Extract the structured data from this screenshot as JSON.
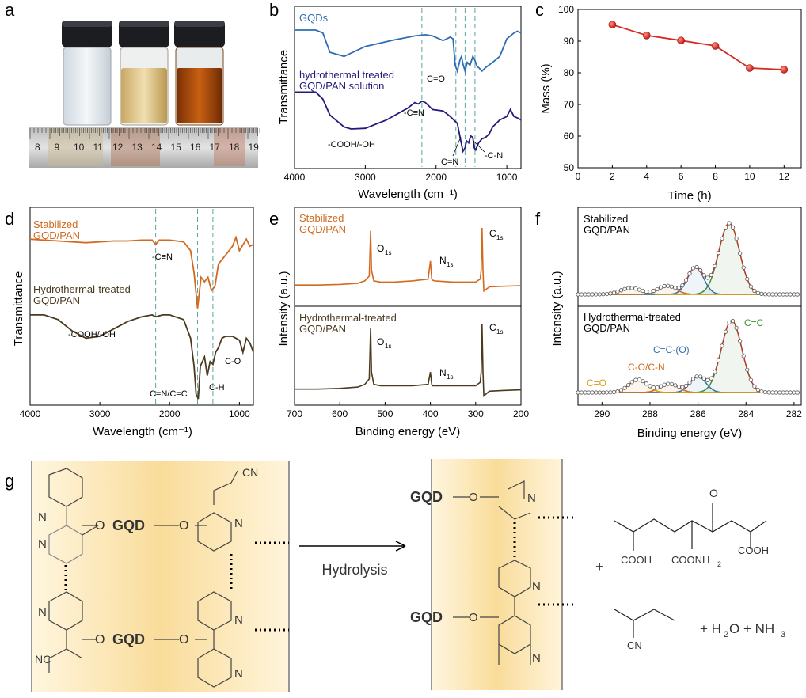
{
  "panels": {
    "a": "a",
    "b": "b",
    "c": "c",
    "d": "d",
    "e": "e",
    "f": "f",
    "g": "g"
  },
  "colors": {
    "gqd_blue": "#2e6db4",
    "navy": "#231a7a",
    "orange": "#d2691e",
    "brown": "#4a3a1e",
    "red": "#d42a23",
    "green": "#3f8f35",
    "steelblue": "#2f6ea6",
    "gold": "#d69a12",
    "olive": "#7a6a1a",
    "dashed": "#5aa5a0"
  },
  "ruler_numbers": [
    "8",
    "9",
    "10",
    "11",
    "12",
    "13",
    "14",
    "15",
    "16",
    "17",
    "18",
    "19"
  ],
  "chart_data": [
    {
      "panel": "b",
      "type": "line",
      "xlabel": "Wavelength (cm⁻¹)",
      "ylabel": "Transmittance",
      "xlim": [
        4000,
        800
      ],
      "x_ticks": [
        4000,
        3000,
        2000,
        1000
      ],
      "series": [
        {
          "name": "GQDs",
          "color": "#2e6db4",
          "x": [
            4000,
            3700,
            3600,
            3500,
            3300,
            3000,
            2600,
            2300,
            2150,
            2050,
            1900,
            1800,
            1760,
            1730,
            1700,
            1660,
            1640,
            1620,
            1590,
            1560,
            1520,
            1480,
            1450,
            1420,
            1390,
            1350,
            1300,
            1200,
            1100,
            1000,
            900,
            850,
            800
          ],
          "y": [
            1.0,
            1.0,
            0.95,
            0.62,
            0.55,
            0.72,
            0.83,
            0.9,
            0.92,
            0.9,
            0.82,
            0.88,
            0.85,
            0.4,
            0.3,
            0.5,
            0.55,
            0.42,
            0.3,
            0.45,
            0.4,
            0.55,
            0.48,
            0.38,
            0.35,
            0.3,
            0.36,
            0.45,
            0.55,
            0.85,
            0.95,
            0.98,
            0.95
          ]
        },
        {
          "name": "hydrothermal treated GQD/PAN solution",
          "color": "#231a7a",
          "x": [
            4000,
            3700,
            3600,
            3500,
            3300,
            3200,
            3000,
            2700,
            2400,
            2300,
            2250,
            2200,
            2150,
            2050,
            1900,
            1800,
            1700,
            1660,
            1620,
            1590,
            1570,
            1540,
            1510,
            1480,
            1460,
            1440,
            1400,
            1350,
            1300,
            1250,
            1200,
            1100,
            1000,
            950,
            900,
            850,
            800
          ],
          "y": [
            0.95,
            0.95,
            0.85,
            0.62,
            0.45,
            0.42,
            0.43,
            0.55,
            0.72,
            0.8,
            0.78,
            0.82,
            0.8,
            0.7,
            0.68,
            0.6,
            0.5,
            0.3,
            0.1,
            0.15,
            0.25,
            0.22,
            0.32,
            0.3,
            0.15,
            0.12,
            0.22,
            0.28,
            0.3,
            0.35,
            0.45,
            0.55,
            0.6,
            0.7,
            0.6,
            0.58,
            0.55
          ]
        }
      ],
      "labels": {
        "series1": "GQDs",
        "series2_line1": "hydrothermal treated",
        "series2_line2": "GQD/PAN solution",
        "cn_triple": "-C≡N",
        "cooh": "-COOH/-OH",
        "co": "C=O",
        "cn_double": "C=N",
        "c_n": "-C-N"
      },
      "dashed_lines_at": [
        2200,
        1720,
        1590,
        1450
      ]
    },
    {
      "panel": "c",
      "type": "line",
      "xlabel": "Time (h)",
      "ylabel": "Mass (%)",
      "xlim": [
        0,
        13
      ],
      "ylim": [
        50,
        100
      ],
      "x_ticks": [
        0,
        2,
        4,
        6,
        8,
        10,
        12
      ],
      "y_ticks": [
        50,
        60,
        70,
        80,
        90,
        100
      ],
      "x": [
        2,
        4,
        6,
        8,
        10,
        12
      ],
      "values": [
        95.2,
        91.8,
        90.2,
        88.5,
        81.5,
        81.0
      ]
    },
    {
      "panel": "d",
      "type": "line",
      "xlabel": "Wavelength (cm⁻¹)",
      "ylabel": "Transmittance",
      "xlim": [
        4000,
        800
      ],
      "x_ticks": [
        4000,
        3000,
        2000,
        1000
      ],
      "series": [
        {
          "name": "Stabilized GQD/PAN",
          "color": "#d2691e",
          "x": [
            4000,
            3800,
            3600,
            3400,
            3200,
            3000,
            2800,
            2600,
            2400,
            2250,
            2200,
            2150,
            2000,
            1800,
            1700,
            1650,
            1600,
            1550,
            1500,
            1450,
            1400,
            1350,
            1300,
            1200,
            1100,
            1050,
            1000,
            900,
            850,
            800
          ],
          "y": [
            0.98,
            0.97,
            0.96,
            0.95,
            0.94,
            0.95,
            0.96,
            0.96,
            0.97,
            0.97,
            0.92,
            0.97,
            0.97,
            0.95,
            0.85,
            0.6,
            0.2,
            0.55,
            0.5,
            0.55,
            0.4,
            0.45,
            0.7,
            0.8,
            0.9,
            1.0,
            0.85,
            0.98,
            0.9,
            0.92
          ]
        },
        {
          "name": "Hydrothermal-treated GQD/PAN",
          "color": "#4a3a1e",
          "x": [
            4000,
            3800,
            3600,
            3400,
            3200,
            3000,
            2800,
            2600,
            2400,
            2250,
            2200,
            2100,
            2000,
            1800,
            1700,
            1650,
            1620,
            1590,
            1560,
            1500,
            1460,
            1420,
            1380,
            1340,
            1300,
            1250,
            1200,
            1100,
            1050,
            1000,
            950,
            900,
            850,
            800
          ],
          "y": [
            0.95,
            0.95,
            0.9,
            0.78,
            0.7,
            0.72,
            0.8,
            0.88,
            0.93,
            0.95,
            0.93,
            0.95,
            0.95,
            0.9,
            0.7,
            0.4,
            0.1,
            0.05,
            0.4,
            0.5,
            0.3,
            0.45,
            0.42,
            0.55,
            0.6,
            0.7,
            0.72,
            0.72,
            0.7,
            0.68,
            0.55,
            0.7,
            0.65,
            0.55
          ]
        }
      ],
      "labels": {
        "s1_line1": "Stabilized",
        "s1_line2": "GQD/PAN",
        "s2_line1": "Hydrothermal-treated",
        "s2_line2": "GQD/PAN",
        "cn_triple": "-C≡N",
        "cooh": "-COOH/-OH",
        "cn_cc": "C=N/C=C",
        "ch": "C-H",
        "co": "C-O"
      },
      "dashed_lines_at": [
        2200,
        1600,
        1380
      ]
    },
    {
      "panel": "e",
      "type": "line",
      "xlabel": "Binding energy (eV)",
      "ylabel": "Intensity (a.u.)",
      "xlim": [
        700,
        200
      ],
      "x_ticks": [
        700,
        600,
        500,
        400,
        300,
        200
      ],
      "series": [
        {
          "name": "Stabilized GQD/PAN",
          "color": "#d2691e",
          "x": [
            700,
            650,
            600,
            560,
            545,
            535,
            532,
            530,
            525,
            510,
            480,
            440,
            405,
            400,
            397,
            395,
            390,
            350,
            300,
            290,
            288,
            286,
            284,
            282,
            270,
            240,
            200
          ],
          "y": [
            0.05,
            0.05,
            0.06,
            0.08,
            0.12,
            0.2,
            0.95,
            0.3,
            0.12,
            0.1,
            0.1,
            0.12,
            0.15,
            0.45,
            0.15,
            0.13,
            0.12,
            0.1,
            0.1,
            0.15,
            0.3,
            1.0,
            0.3,
            -0.05,
            0.02,
            0.03,
            0.04
          ]
        },
        {
          "name": "Hydrothermal-treated GQD/PAN",
          "color": "#4a3a1e",
          "x": [
            700,
            650,
            600,
            560,
            545,
            535,
            532,
            530,
            525,
            510,
            480,
            440,
            405,
            400,
            397,
            395,
            390,
            350,
            300,
            290,
            288,
            286,
            284,
            282,
            270,
            240,
            200
          ],
          "y": [
            0.05,
            0.05,
            0.06,
            0.08,
            0.12,
            0.2,
            0.95,
            0.3,
            0.12,
            0.1,
            0.1,
            0.1,
            0.12,
            0.3,
            0.12,
            0.1,
            0.1,
            0.1,
            0.1,
            0.15,
            0.3,
            1.0,
            0.3,
            -0.05,
            0.02,
            0.03,
            0.04
          ]
        }
      ],
      "labels": {
        "s1_line1": "Stabilized",
        "s1_line2": "GQD/PAN",
        "s2_line1": "Hydrothermal-treated",
        "s2_line2": "GQD/PAN",
        "o1s": "O",
        "n1s": "N",
        "c1s": "C",
        "sub1s": "1s"
      }
    },
    {
      "panel": "f",
      "type": "line",
      "xlabel": "Binding energy (eV)",
      "ylabel": "Intensity (a.u.)",
      "xlim": [
        291,
        281.7
      ],
      "x_ticks": [
        290,
        288,
        286,
        284,
        282
      ],
      "subplots": [
        {
          "name": "Stabilized GQD/PAN",
          "peaks": [
            {
              "center": 284.7,
              "height": 1.0,
              "width": 0.9,
              "color": "#3f8f35"
            },
            {
              "center": 286.1,
              "height": 0.38,
              "width": 0.7,
              "color": "#2f6ea6"
            },
            {
              "center": 287.3,
              "height": 0.12,
              "width": 0.8,
              "color": "#d2691e"
            },
            {
              "center": 288.8,
              "height": 0.09,
              "width": 0.9,
              "color": "#d69a12"
            }
          ]
        },
        {
          "name": "Hydrothermal-treated GQD/PAN",
          "peaks": [
            {
              "center": 284.6,
              "height": 1.0,
              "width": 0.9,
              "color": "#3f8f35"
            },
            {
              "center": 286.0,
              "height": 0.22,
              "width": 0.7,
              "color": "#2f6ea6"
            },
            {
              "center": 287.2,
              "height": 0.12,
              "width": 0.8,
              "color": "#d2691e"
            },
            {
              "center": 288.5,
              "height": 0.18,
              "width": 0.8,
              "color": "#d69a12"
            }
          ]
        }
      ],
      "labels": {
        "s1_line1": "Stabilized",
        "s1_line2": "GQD/PAN",
        "s2_line1": "Hydrothermal-treated",
        "s2_line2": "GQD/PAN",
        "cc": "C=C",
        "cco": "C=C-(O)",
        "con": "C-O/C-N",
        "co": "C=O"
      }
    }
  ],
  "scheme": {
    "gqd": "GQD",
    "o": "O",
    "n": "N",
    "cn_label": "CN",
    "nc_label": "NC",
    "arrow_label": "Hydrolysis",
    "plus": "+",
    "cooh": "COOH",
    "coonh2_a": "COONH",
    "coonh2_b": "2",
    "o_ketone": "O",
    "cn2": "CN",
    "tail_a": "+ H",
    "tail_b": "2",
    "tail_c": "O + NH",
    "tail_d": "3"
  }
}
